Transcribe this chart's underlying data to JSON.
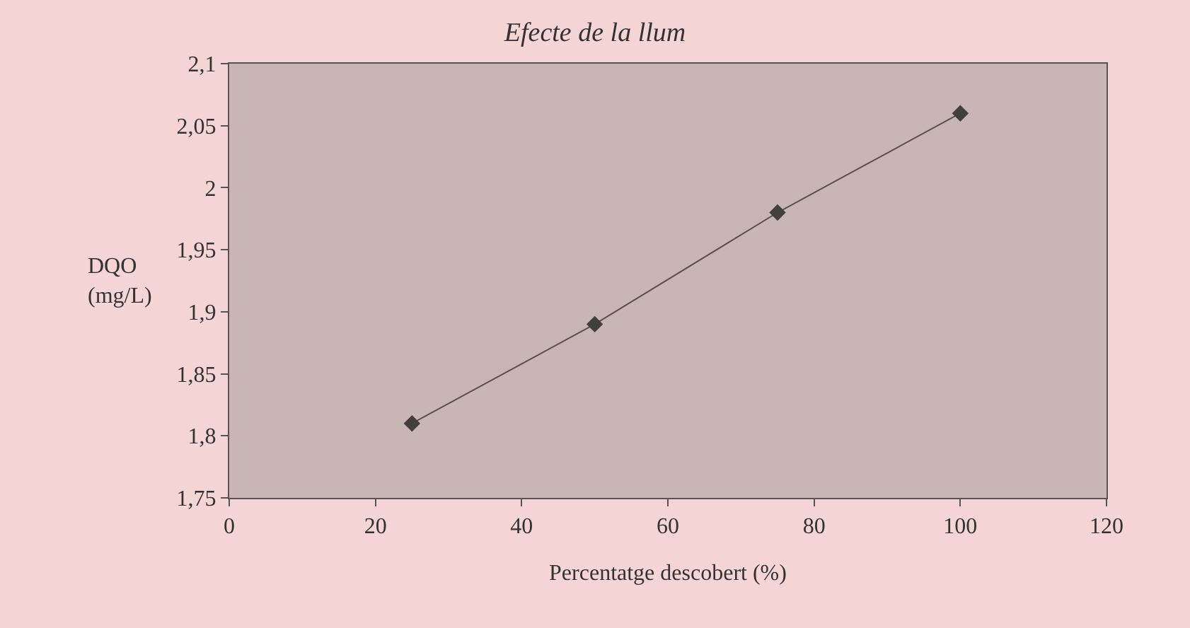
{
  "chart_data": {
    "type": "line",
    "title": "Efecte de la llum",
    "xlabel": "Percentatge descobert (%)",
    "ylabel": "DQO\n(mg/L)",
    "x": [
      25,
      50,
      75,
      100
    ],
    "series": [
      {
        "color": "#404040",
        "values": [
          1.81,
          1.89,
          1.98,
          2.06
        ]
      }
    ],
    "xlim": [
      0,
      120
    ],
    "xticks": [
      0,
      20,
      40,
      60,
      80,
      100,
      120
    ],
    "ylim": [
      1.75,
      2.1
    ],
    "yticks": [
      {
        "value": 1.75,
        "label": "1,75"
      },
      {
        "value": 1.8,
        "label": "1,8"
      },
      {
        "value": 1.85,
        "label": "1,85"
      },
      {
        "value": 1.9,
        "label": "1,9"
      },
      {
        "value": 1.95,
        "label": "1,95"
      },
      {
        "value": 2.0,
        "label": "2"
      },
      {
        "value": 2.05,
        "label": "2,05"
      },
      {
        "value": 2.1,
        "label": "2,1"
      }
    ],
    "grid": false,
    "marker": "diamond",
    "line_style": "solid"
  }
}
